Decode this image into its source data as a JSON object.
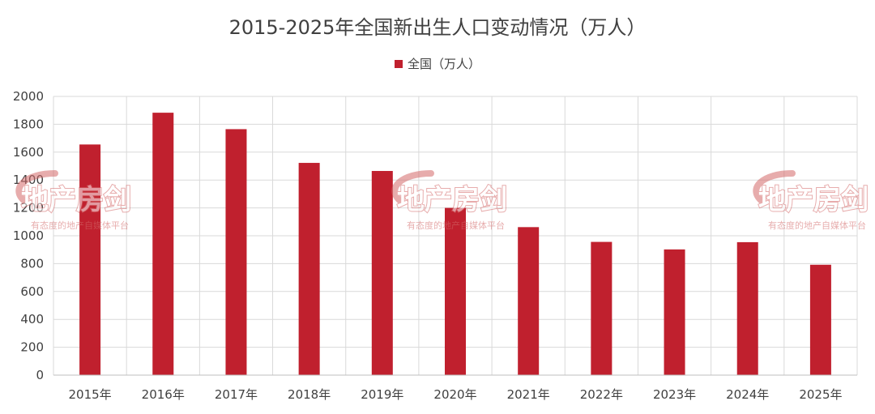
{
  "chart_data": {
    "type": "bar",
    "title": "2015-2025年全国新出生人口变动情况（万人）",
    "categories": [
      "2015年",
      "2016年",
      "2017年",
      "2018年",
      "2019年",
      "2020年",
      "2021年",
      "2022年",
      "2023年",
      "2024年",
      "2025年"
    ],
    "series": [
      {
        "name": "全国（万人）",
        "color": "#c0202e",
        "values": [
          1655,
          1883,
          1765,
          1523,
          1465,
          1200,
          1062,
          956,
          902,
          954,
          792
        ]
      }
    ],
    "ylim": [
      0,
      2000
    ],
    "yticks": [
      0,
      200,
      400,
      600,
      800,
      1000,
      1200,
      1400,
      1600,
      1800,
      2000
    ],
    "grid": true,
    "legend_position": "top-center"
  },
  "watermark": {
    "logo_text": "地产房剑",
    "tagline": "有态度的地产自媒体平台"
  }
}
